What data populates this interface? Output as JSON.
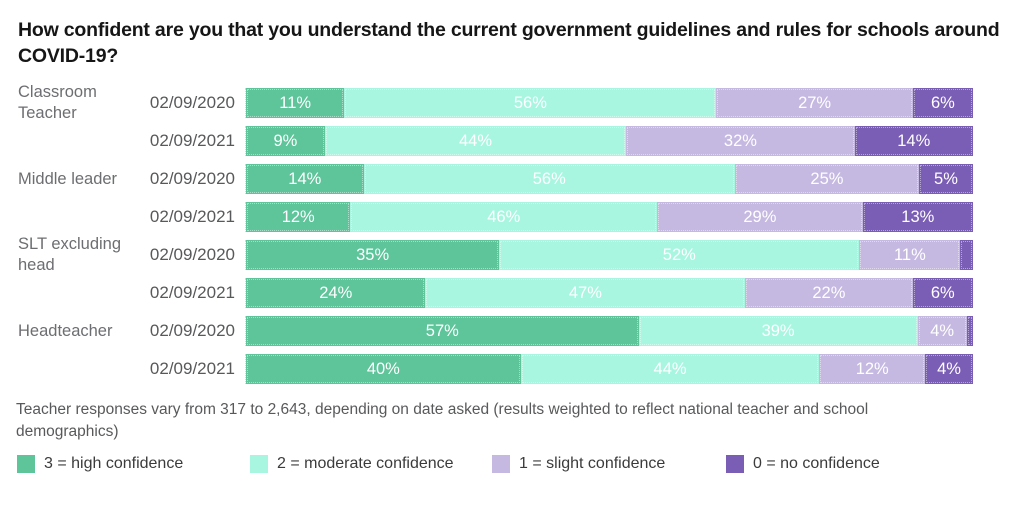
{
  "title": "How confident are you that you understand the current government guidelines and rules for schools around COVID-19?",
  "footnote": "Teacher responses vary from 317 to 2,643, depending on date asked (results weighted to reflect national teacher and school demographics)",
  "colors": {
    "high_confidence": "#5EC49A",
    "moderate_confidence": "#A8F6E0",
    "slight_confidence": "#C5B9E2",
    "no_confidence": "#7A5DB4"
  },
  "legend": {
    "items": [
      {
        "key": "high-confidence",
        "label": "3 = high confidence",
        "color": "#5EC49A"
      },
      {
        "key": "moderate-confidence",
        "label": "2 = moderate confidence",
        "color": "#A8F6E0"
      },
      {
        "key": "slight-confidence",
        "label": "1 = slight confidence",
        "color": "#C5B9E2"
      },
      {
        "key": "no-confidence",
        "label": "0 = no confidence",
        "color": "#7A5DB4"
      }
    ]
  },
  "chart_data": {
    "type": "bar",
    "orientation": "horizontal",
    "stacked": true,
    "unit": "%",
    "xlim": [
      0,
      100
    ],
    "grid": false,
    "legend_position": "bottom",
    "label_min_percent": 4,
    "series": [
      {
        "key": "high-confidence",
        "name": "3 = high confidence",
        "color": "#5EC49A"
      },
      {
        "key": "moderate-confidence",
        "name": "2 = moderate confidence",
        "color": "#A8F6E0"
      },
      {
        "key": "slight-confidence",
        "name": "1 = slight confidence",
        "color": "#C5B9E2"
      },
      {
        "key": "no-confidence",
        "name": "0 = no confidence",
        "color": "#7A5DB4"
      }
    ],
    "groups": [
      {
        "group": "Classroom Teacher",
        "rows": [
          {
            "date": "02/09/2020",
            "values": [
              11,
              56,
              27,
              6
            ]
          },
          {
            "date": "02/09/2021",
            "values": [
              9,
              44,
              32,
              14
            ]
          }
        ]
      },
      {
        "group": "Middle leader",
        "rows": [
          {
            "date": "02/09/2020",
            "values": [
              14,
              56,
              25,
              5
            ]
          },
          {
            "date": "02/09/2021",
            "values": [
              12,
              46,
              29,
              13
            ]
          }
        ]
      },
      {
        "group": "SLT excluding head",
        "rows": [
          {
            "date": "02/09/2020",
            "values": [
              35,
              52,
              11,
              2
            ]
          },
          {
            "date": "02/09/2021",
            "values": [
              24,
              47,
              22,
              6
            ]
          }
        ]
      },
      {
        "group": "Headteacher",
        "rows": [
          {
            "date": "02/09/2020",
            "values": [
              57,
              39,
              4,
              1
            ]
          },
          {
            "date": "02/09/2021",
            "values": [
              40,
              44,
              12,
              4
            ]
          }
        ]
      }
    ]
  }
}
